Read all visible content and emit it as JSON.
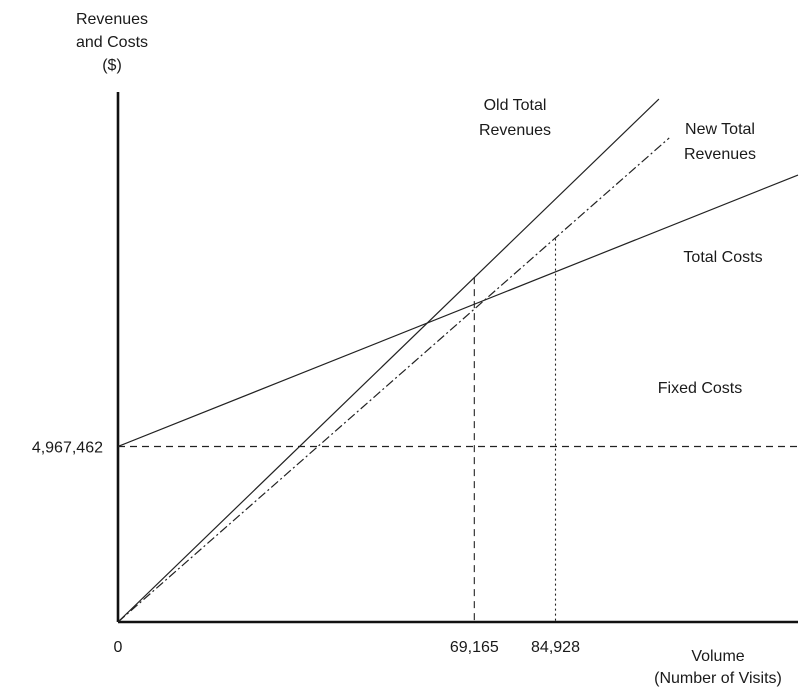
{
  "chart_data": {
    "type": "line",
    "title": "",
    "ylabel_lines": [
      "Revenues",
      "and Costs",
      "($)"
    ],
    "xlabel_lines": [
      "Volume",
      "(Number of Visits)"
    ],
    "x_ticks": [
      {
        "value": 0,
        "label": "0"
      },
      {
        "value": 69165,
        "label": "69,165"
      },
      {
        "value": 84928,
        "label": "84,928"
      }
    ],
    "y_ticks": [
      {
        "value": 4967462,
        "label": "4,967,462"
      }
    ],
    "fixed_costs": 4967462,
    "break_even_points": [
      {
        "x": 69165,
        "y": 9760000,
        "series": "Old Total Revenues",
        "line_style": "dashed"
      },
      {
        "x": 84928,
        "y": 10850000,
        "series": "New Total Revenues",
        "line_style": "dotted"
      }
    ],
    "series": [
      {
        "key": "old_rev",
        "name_lines": [
          "Old Total",
          "Revenues"
        ],
        "style": "solid",
        "points": [
          [
            0,
            0
          ],
          [
            105000,
            14800000
          ]
        ]
      },
      {
        "key": "new_rev",
        "name_lines": [
          "New Total",
          "Revenues"
        ],
        "style": "dashdot",
        "points": [
          [
            0,
            0
          ],
          [
            107000,
            13700000
          ]
        ]
      },
      {
        "key": "total_costs",
        "name_lines": [
          "Total Costs"
        ],
        "style": "solid",
        "points": [
          [
            0,
            4967462
          ],
          [
            132000,
            12650000
          ]
        ]
      },
      {
        "key": "fixed_costs",
        "name_lines": [
          "Fixed Costs"
        ],
        "style": "dashed",
        "points": [
          [
            0,
            4967462
          ],
          [
            132000,
            4967462
          ]
        ]
      }
    ],
    "xlim": [
      0,
      132000
    ],
    "ylim": [
      0,
      15000000
    ],
    "grid": false,
    "legend": "none"
  }
}
